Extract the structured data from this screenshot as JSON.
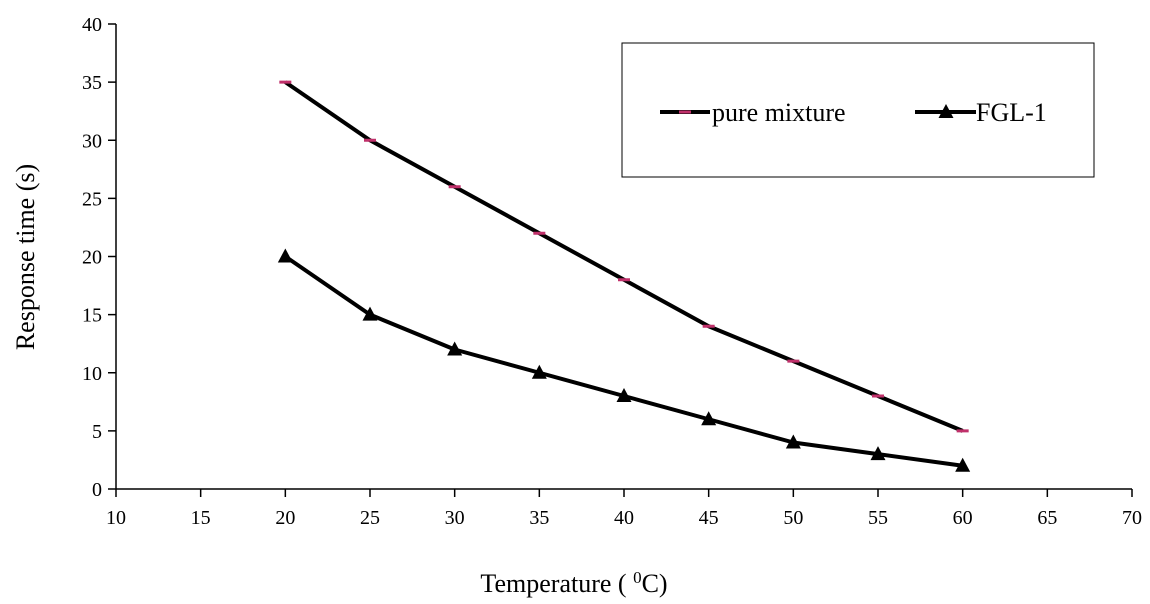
{
  "chart_data": {
    "type": "line",
    "title": "",
    "xlabel": "Temperature ( ",
    "xlabel_sup": "0",
    "xlabel_unit": "C)",
    "ylabel": "Response time (s)",
    "xlim": [
      10,
      70
    ],
    "ylim": [
      0,
      40
    ],
    "xticks": [
      10,
      15,
      20,
      25,
      30,
      35,
      40,
      45,
      50,
      55,
      60,
      65,
      70
    ],
    "yticks": [
      0,
      5,
      10,
      15,
      20,
      25,
      30,
      35,
      40
    ],
    "grid": false,
    "legend_position": "top-right",
    "x": [
      20,
      25,
      30,
      35,
      40,
      45,
      50,
      55,
      60
    ],
    "series": [
      {
        "name": "pure mixture",
        "values": [
          35,
          30,
          26,
          22,
          18,
          14,
          11,
          8,
          5
        ],
        "line_color": "#000000",
        "marker": "dash",
        "marker_color": "#c0306a"
      },
      {
        "name": "FGL-1",
        "values": [
          20,
          15,
          12,
          10,
          8,
          6,
          4,
          3,
          2
        ],
        "line_color": "#000000",
        "marker": "triangle",
        "marker_color": "#000000"
      }
    ]
  }
}
